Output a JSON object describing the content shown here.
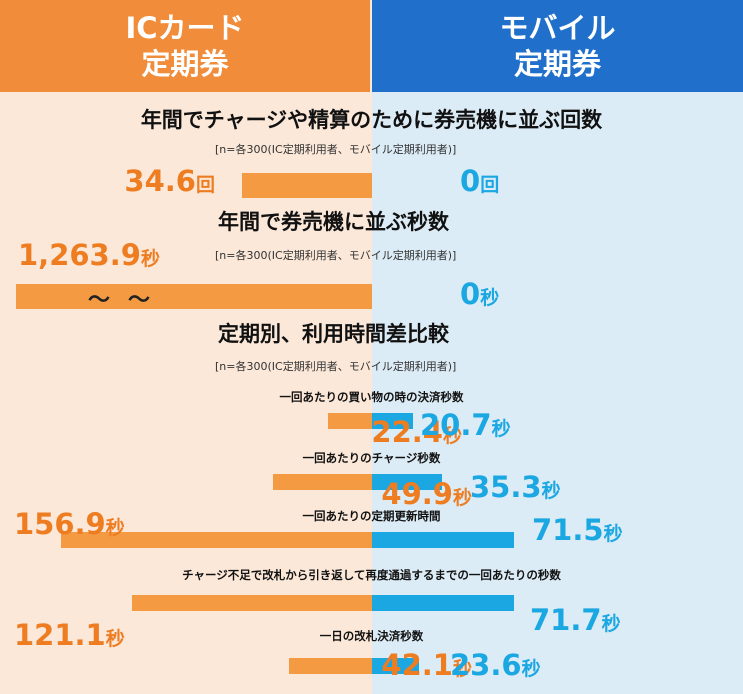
{
  "header": {
    "left_line1": "ICカード",
    "left_line2": "定期券",
    "right_line1": "モバイル",
    "right_line2": "定期券"
  },
  "sections": [
    {
      "title": "年間でチャージや精算のために券売機に並ぶ回数",
      "note": "[n=各300(IC定期利用者、モバイル定期利用者)]"
    },
    {
      "title": "年間で券売機に並ぶ秒数",
      "note": "[n=各300(IC定期利用者、モバイル定期利用者)]"
    },
    {
      "title": "定期別、利用時間差比較",
      "note": "[n=各300(IC定期利用者、モバイル定期利用者)]"
    }
  ],
  "break_mark": "〜",
  "colors": {
    "ic": "#f49a43",
    "ic_text": "#ee7d22",
    "mobile": "#1ba7e1",
    "header_ic": "#f08c3a",
    "header_mobile": "#1f6fcb"
  },
  "chart_data": [
    {
      "type": "bar",
      "title": "年間でチャージや精算のために券売機に並ぶ回数",
      "unit": "回",
      "series": [
        {
          "name": "ICカード定期券",
          "values": [
            34.6
          ],
          "labels": [
            "34.6"
          ]
        },
        {
          "name": "モバイル定期券",
          "values": [
            0
          ],
          "labels": [
            "0"
          ]
        }
      ]
    },
    {
      "type": "bar",
      "title": "年間で券売機に並ぶ秒数",
      "unit": "秒",
      "axis_break": true,
      "series": [
        {
          "name": "ICカード定期券",
          "values": [
            1263.9
          ],
          "labels": [
            "1,263.9"
          ]
        },
        {
          "name": "モバイル定期券",
          "values": [
            0
          ],
          "labels": [
            "0"
          ]
        }
      ]
    },
    {
      "type": "bar",
      "title": "定期別、利用時間差比較",
      "unit": "秒",
      "categories": [
        "一回あたりの買い物の時の決済秒数",
        "一回あたりのチャージ秒数",
        "一回あたりの定期更新時間",
        "チャージ不足で改札から引き返して再度通過するまでの一回あたりの秒数",
        "一日の改札決済秒数"
      ],
      "series": [
        {
          "name": "ICカード定期券",
          "values": [
            22.4,
            49.9,
            156.9,
            121.1,
            42.1
          ],
          "labels": [
            "22.4",
            "49.9",
            "156.9",
            "121.1",
            "42.1"
          ]
        },
        {
          "name": "モバイル定期券",
          "values": [
            20.7,
            35.3,
            71.5,
            71.7,
            23.6
          ],
          "labels": [
            "20.7",
            "35.3",
            "71.5",
            "71.7",
            "23.6"
          ]
        }
      ]
    }
  ]
}
